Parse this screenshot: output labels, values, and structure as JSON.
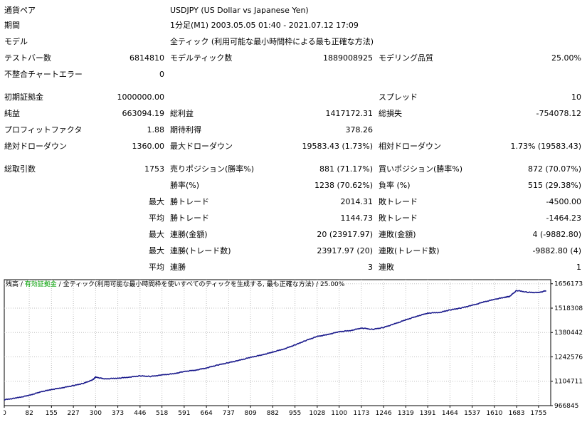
{
  "report": {
    "symbol_label": "通貨ペア",
    "symbol_value": "USDJPY (US Dollar vs Japanese Yen)",
    "period_label": "期間",
    "period_value": "1分足(M1) 2003.05.05 01:40 - 2021.07.12 17:09",
    "model_label": "モデル",
    "model_value": "全ティック (利用可能な最小時間枠による最も正確な方法)",
    "bars_label": "テストバー数",
    "bars_value": "6814810",
    "ticks_label": "モデルティック数",
    "ticks_value": "1889008925",
    "quality_label": "モデリング品質",
    "quality_value": "25.00%",
    "mismatch_label": "不整合チャートエラー",
    "mismatch_value": "0",
    "deposit_label": "初期証拠金",
    "deposit_value": "1000000.00",
    "spread_label": "スプレッド",
    "spread_value": "10",
    "net_profit_label": "純益",
    "net_profit_value": "663094.19",
    "gross_profit_label": "総利益",
    "gross_profit_value": "1417172.31",
    "gross_loss_label": "総損失",
    "gross_loss_value": "-754078.12",
    "pf_label": "プロフィットファクタ",
    "pf_value": "1.88",
    "expected_label": "期待利得",
    "expected_value": "378.26",
    "abs_dd_label": "絶対ドローダウン",
    "abs_dd_value": "1360.00",
    "max_dd_label": "最大ドローダウン",
    "max_dd_value": "19583.43 (1.73%)",
    "rel_dd_label": "相対ドローダウン",
    "rel_dd_value": "1.73% (19583.43)",
    "trades_label": "総取引数",
    "trades_value": "1753",
    "short_label": "売りポジション(勝率%)",
    "short_value": "881 (71.17%)",
    "long_label": "買いポジション(勝率%)",
    "long_value": "872 (70.07%)",
    "win_pct_label": "勝率(%)",
    "win_pct_value": "1238 (70.62%)",
    "loss_pct_label": "負率 (%)",
    "loss_pct_value": "515 (29.38%)",
    "max_label": "最大",
    "avg_label": "平均",
    "largest_win_label": "勝トレード",
    "largest_win_value": "2014.31",
    "largest_loss_label": "敗トレード",
    "largest_loss_value": "-4500.00",
    "avg_win_label": "勝トレード",
    "avg_win_value": "1144.73",
    "avg_loss_label": "敗トレード",
    "avg_loss_value": "-1464.23",
    "cons_wins_money_label": "連勝(金額)",
    "cons_wins_money_value": "20 (23917.97)",
    "cons_loss_money_label": "連敗(金額)",
    "cons_loss_money_value": "4 (-9882.80)",
    "cons_profit_label": "連勝(トレード数)",
    "cons_profit_value": "23917.97 (20)",
    "cons_loss_label": "連敗(トレード数)",
    "cons_loss_value": "-9882.80 (4)",
    "avg_cons_win_label": "連勝",
    "avg_cons_win_value": "3",
    "avg_cons_loss_label": "連敗",
    "avg_cons_loss_value": "1"
  },
  "chart_caption": {
    "balance": "残高",
    "sep1": " / ",
    "equity": "有効証拠金",
    "sep2": " / ",
    "model": "全ティック(利用可能な最小時間枠を使いすべてのティックを生成する, 最も正確な方法)",
    "sep3": " / ",
    "quality": "25.00%"
  },
  "colors": {
    "balance_line": "#1a1a8c",
    "equity_caption": "#00a000",
    "grid": "#c0c0c0"
  },
  "chart_data": {
    "type": "line",
    "title": "",
    "xlabel": "",
    "ylabel": "",
    "grid": true,
    "x_ticks": [
      "0",
      "82",
      "155",
      "227",
      "300",
      "373",
      "446",
      "518",
      "591",
      "664",
      "737",
      "809",
      "882",
      "955",
      "1028",
      "1100",
      "1173",
      "1246",
      "1319",
      "1391",
      "1464",
      "1537",
      "1610",
      "1683",
      "1755"
    ],
    "y_ticks": [
      "1656173",
      "1518308",
      "1380442",
      "1242576",
      "1104711",
      "966845"
    ],
    "xlim": [
      0,
      1795
    ],
    "ylim": [
      966845,
      1679300
    ],
    "series": [
      {
        "name": "残高",
        "x": [
          0,
          40,
          82,
          120,
          155,
          190,
          227,
          260,
          290,
          300,
          330,
          373,
          410,
          446,
          480,
          518,
          560,
          591,
          630,
          664,
          700,
          737,
          770,
          809,
          850,
          882,
          920,
          955,
          990,
          1028,
          1060,
          1100,
          1140,
          1173,
          1210,
          1246,
          1280,
          1319,
          1355,
          1391,
          1430,
          1464,
          1500,
          1537,
          1575,
          1610,
          1645,
          1660,
          1683,
          1720,
          1755,
          1780
        ],
        "y": [
          1000000,
          1010000,
          1025000,
          1045000,
          1058000,
          1068000,
          1080000,
          1093000,
          1112000,
          1128000,
          1118000,
          1122000,
          1128000,
          1135000,
          1132000,
          1140000,
          1148000,
          1160000,
          1168000,
          1180000,
          1196000,
          1210000,
          1222000,
          1240000,
          1255000,
          1270000,
          1288000,
          1310000,
          1335000,
          1358000,
          1368000,
          1385000,
          1392000,
          1406000,
          1398000,
          1409000,
          1428000,
          1452000,
          1472000,
          1490000,
          1494000,
          1508000,
          1519000,
          1534000,
          1553000,
          1568000,
          1580000,
          1585000,
          1618000,
          1608000,
          1606000,
          1617000
        ]
      }
    ]
  }
}
